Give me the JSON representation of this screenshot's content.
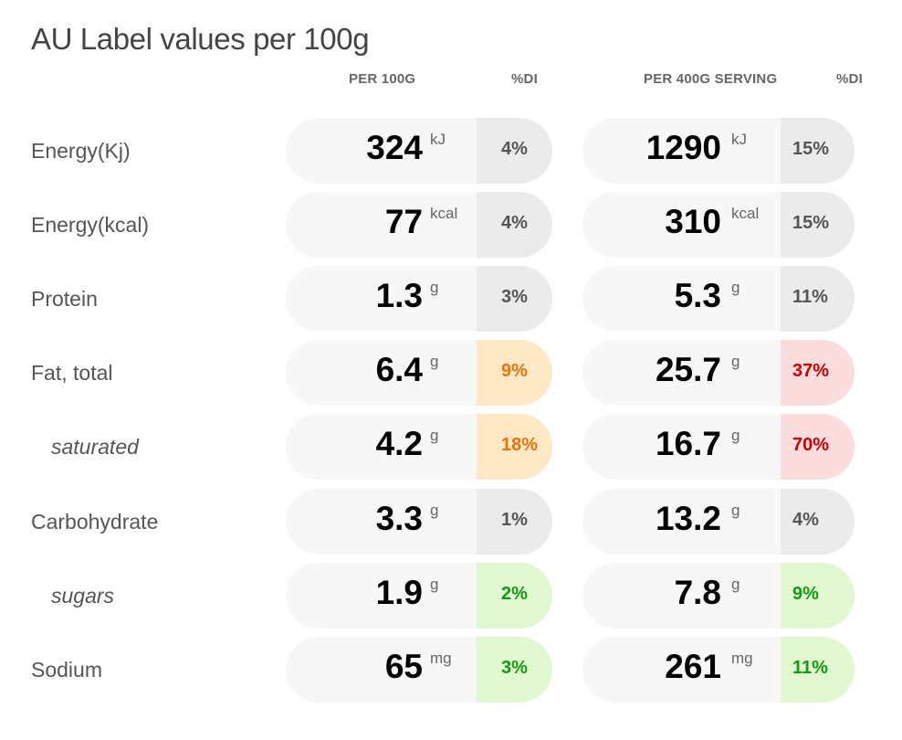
{
  "title": "AU Label values per 100g",
  "headers": {
    "per100": "PER 100G",
    "di1": "%DI",
    "perServing": "PER 400G SERVING",
    "di2": "%DI"
  },
  "colors": {
    "grey": "#ebebeb",
    "orange": "#fde9c6",
    "red": "#fbdddd",
    "green": "#e2f8d0"
  },
  "rows": [
    {
      "label": "Energy(Kj)",
      "sub": false,
      "v100": "324",
      "u100": "kJ",
      "di100": "4%",
      "c100": "grey",
      "vs": "1290",
      "us": "kJ",
      "dis": "15%",
      "cs": "grey"
    },
    {
      "label": "Energy(kcal)",
      "sub": false,
      "v100": "77",
      "u100": "kcal",
      "di100": "4%",
      "c100": "grey",
      "vs": "310",
      "us": "kcal",
      "dis": "15%",
      "cs": "grey"
    },
    {
      "label": "Protein",
      "sub": false,
      "v100": "1.3",
      "u100": "g",
      "di100": "3%",
      "c100": "grey",
      "vs": "5.3",
      "us": "g",
      "dis": "11%",
      "cs": "grey"
    },
    {
      "label": "Fat, total",
      "sub": false,
      "v100": "6.4",
      "u100": "g",
      "di100": "9%",
      "c100": "orange",
      "vs": "25.7",
      "us": "g",
      "dis": "37%",
      "cs": "red"
    },
    {
      "label": "saturated",
      "sub": true,
      "v100": "4.2",
      "u100": "g",
      "di100": "18%",
      "c100": "orange",
      "vs": "16.7",
      "us": "g",
      "dis": "70%",
      "cs": "red"
    },
    {
      "label": "Carbohydrate",
      "sub": false,
      "v100": "3.3",
      "u100": "g",
      "di100": "1%",
      "c100": "grey",
      "vs": "13.2",
      "us": "g",
      "dis": "4%",
      "cs": "grey"
    },
    {
      "label": "sugars",
      "sub": true,
      "v100": "1.9",
      "u100": "g",
      "di100": "2%",
      "c100": "green",
      "vs": "7.8",
      "us": "g",
      "dis": "9%",
      "cs": "green"
    },
    {
      "label": "Sodium",
      "sub": false,
      "v100": "65",
      "u100": "mg",
      "di100": "3%",
      "c100": "green",
      "vs": "261",
      "us": "mg",
      "dis": "11%",
      "cs": "green"
    }
  ]
}
